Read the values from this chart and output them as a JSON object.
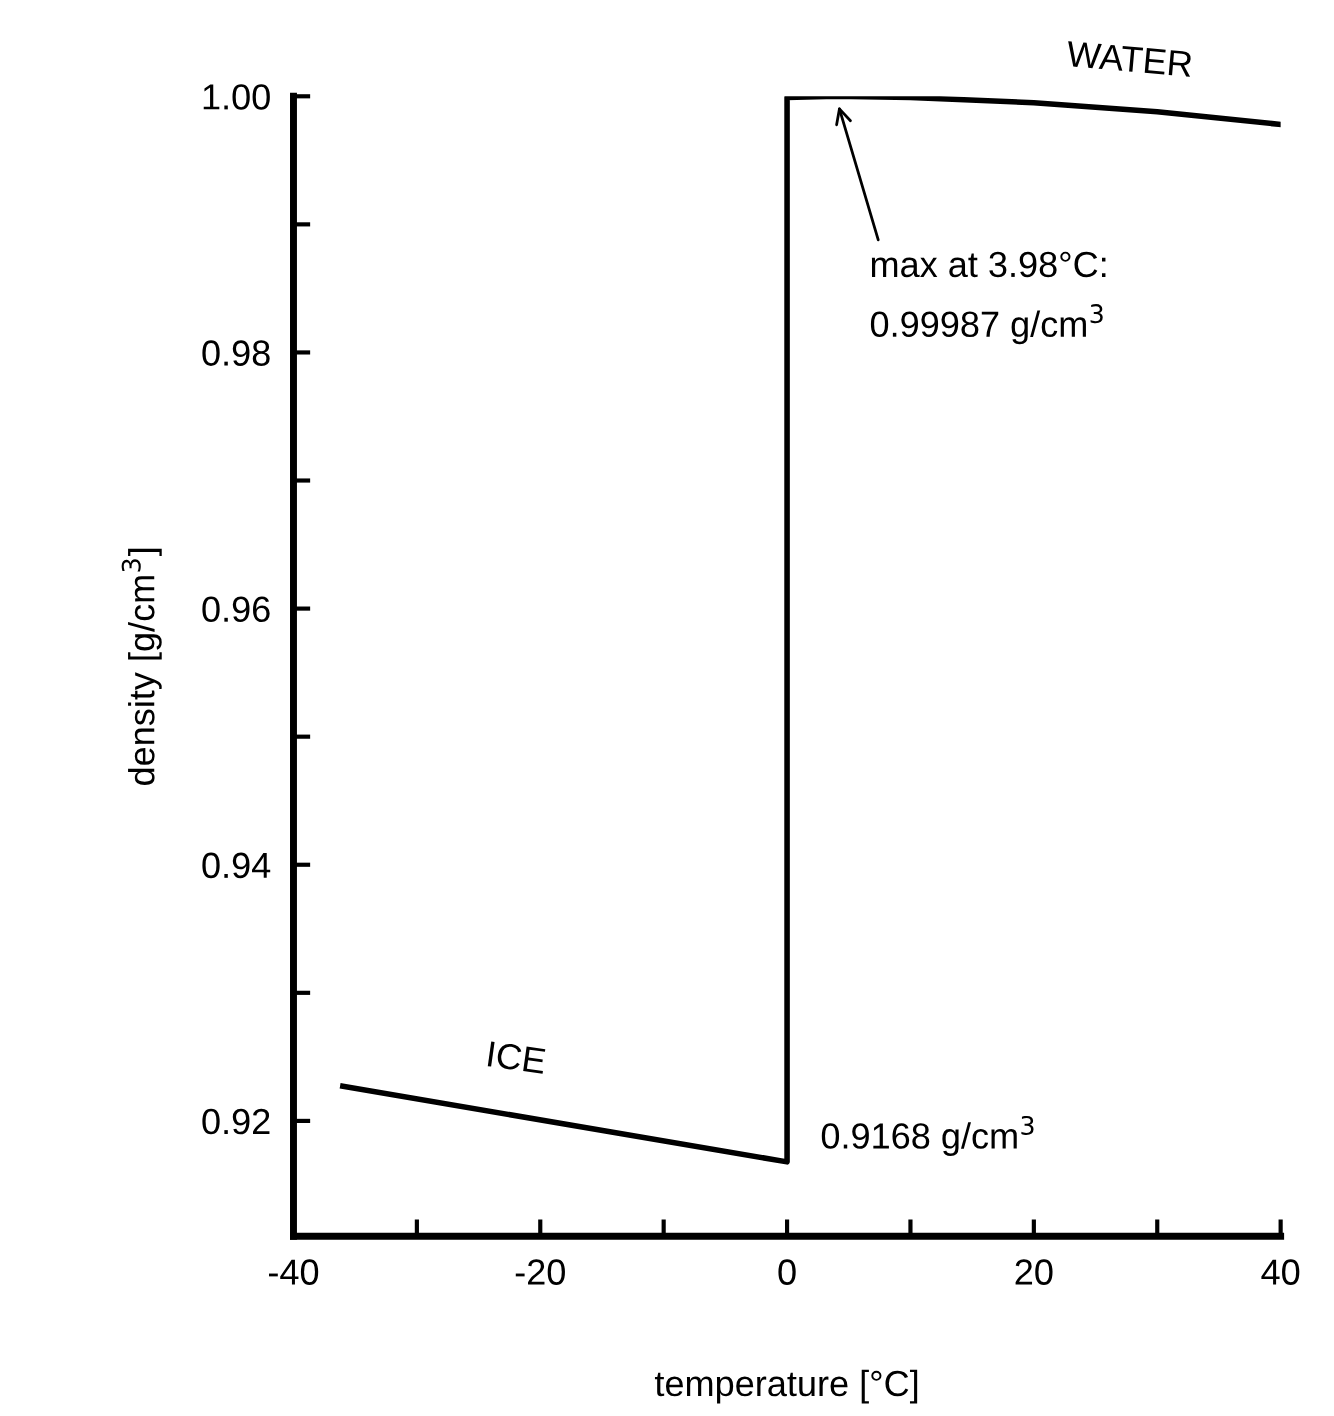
{
  "chart_data": {
    "type": "line",
    "xlabel": "temperature [°C]",
    "ylabel": "density [g/cm$^{3}$]",
    "series": [
      {
        "color": "#000000",
        "x": [
          -36,
          0,
          0,
          3.98,
          10,
          20,
          30,
          40
        ],
        "values": [
          0.9227,
          0.9168,
          0.9999,
          1.0,
          0.9999,
          0.9995,
          0.9988,
          0.9978
        ]
      }
    ],
    "xlim": [
      -40,
      40
    ],
    "xticks": [
      -40,
      {
        "value": -30,
        "label": null
      },
      -20,
      {
        "value": -10,
        "label": null
      },
      0,
      {
        "value": 10,
        "label": null
      },
      20,
      {
        "value": 30,
        "label": null
      },
      40
    ],
    "ylim": [
      0.911,
      1.0
    ],
    "yticks": [
      {
        "value": 0.92,
        "label": "0.92"
      },
      {
        "value": 0.93,
        "label": null
      },
      {
        "value": 0.94,
        "label": "0.94"
      },
      {
        "value": 0.95,
        "label": null
      },
      {
        "value": 0.96,
        "label": "0.96"
      },
      {
        "value": 0.97,
        "label": null
      },
      {
        "value": 0.98,
        "label": "0.98"
      },
      {
        "value": 0.99,
        "label": null
      },
      {
        "value": 1.0,
        "label": "1.00"
      }
    ],
    "grid": false,
    "legend": false,
    "marker": "none",
    "line_style": "solid",
    "annotations": [
      "ICE",
      "WATER",
      {
        "text": "max at 3.98°C:\n0.99987 g/cm$^{3}$",
        "x": 3.98,
        "y": 0.99987
      },
      {
        "text": "0.9168 g/cm$^{3}$",
        "x": 0,
        "y": 0.9168
      }
    ]
  }
}
